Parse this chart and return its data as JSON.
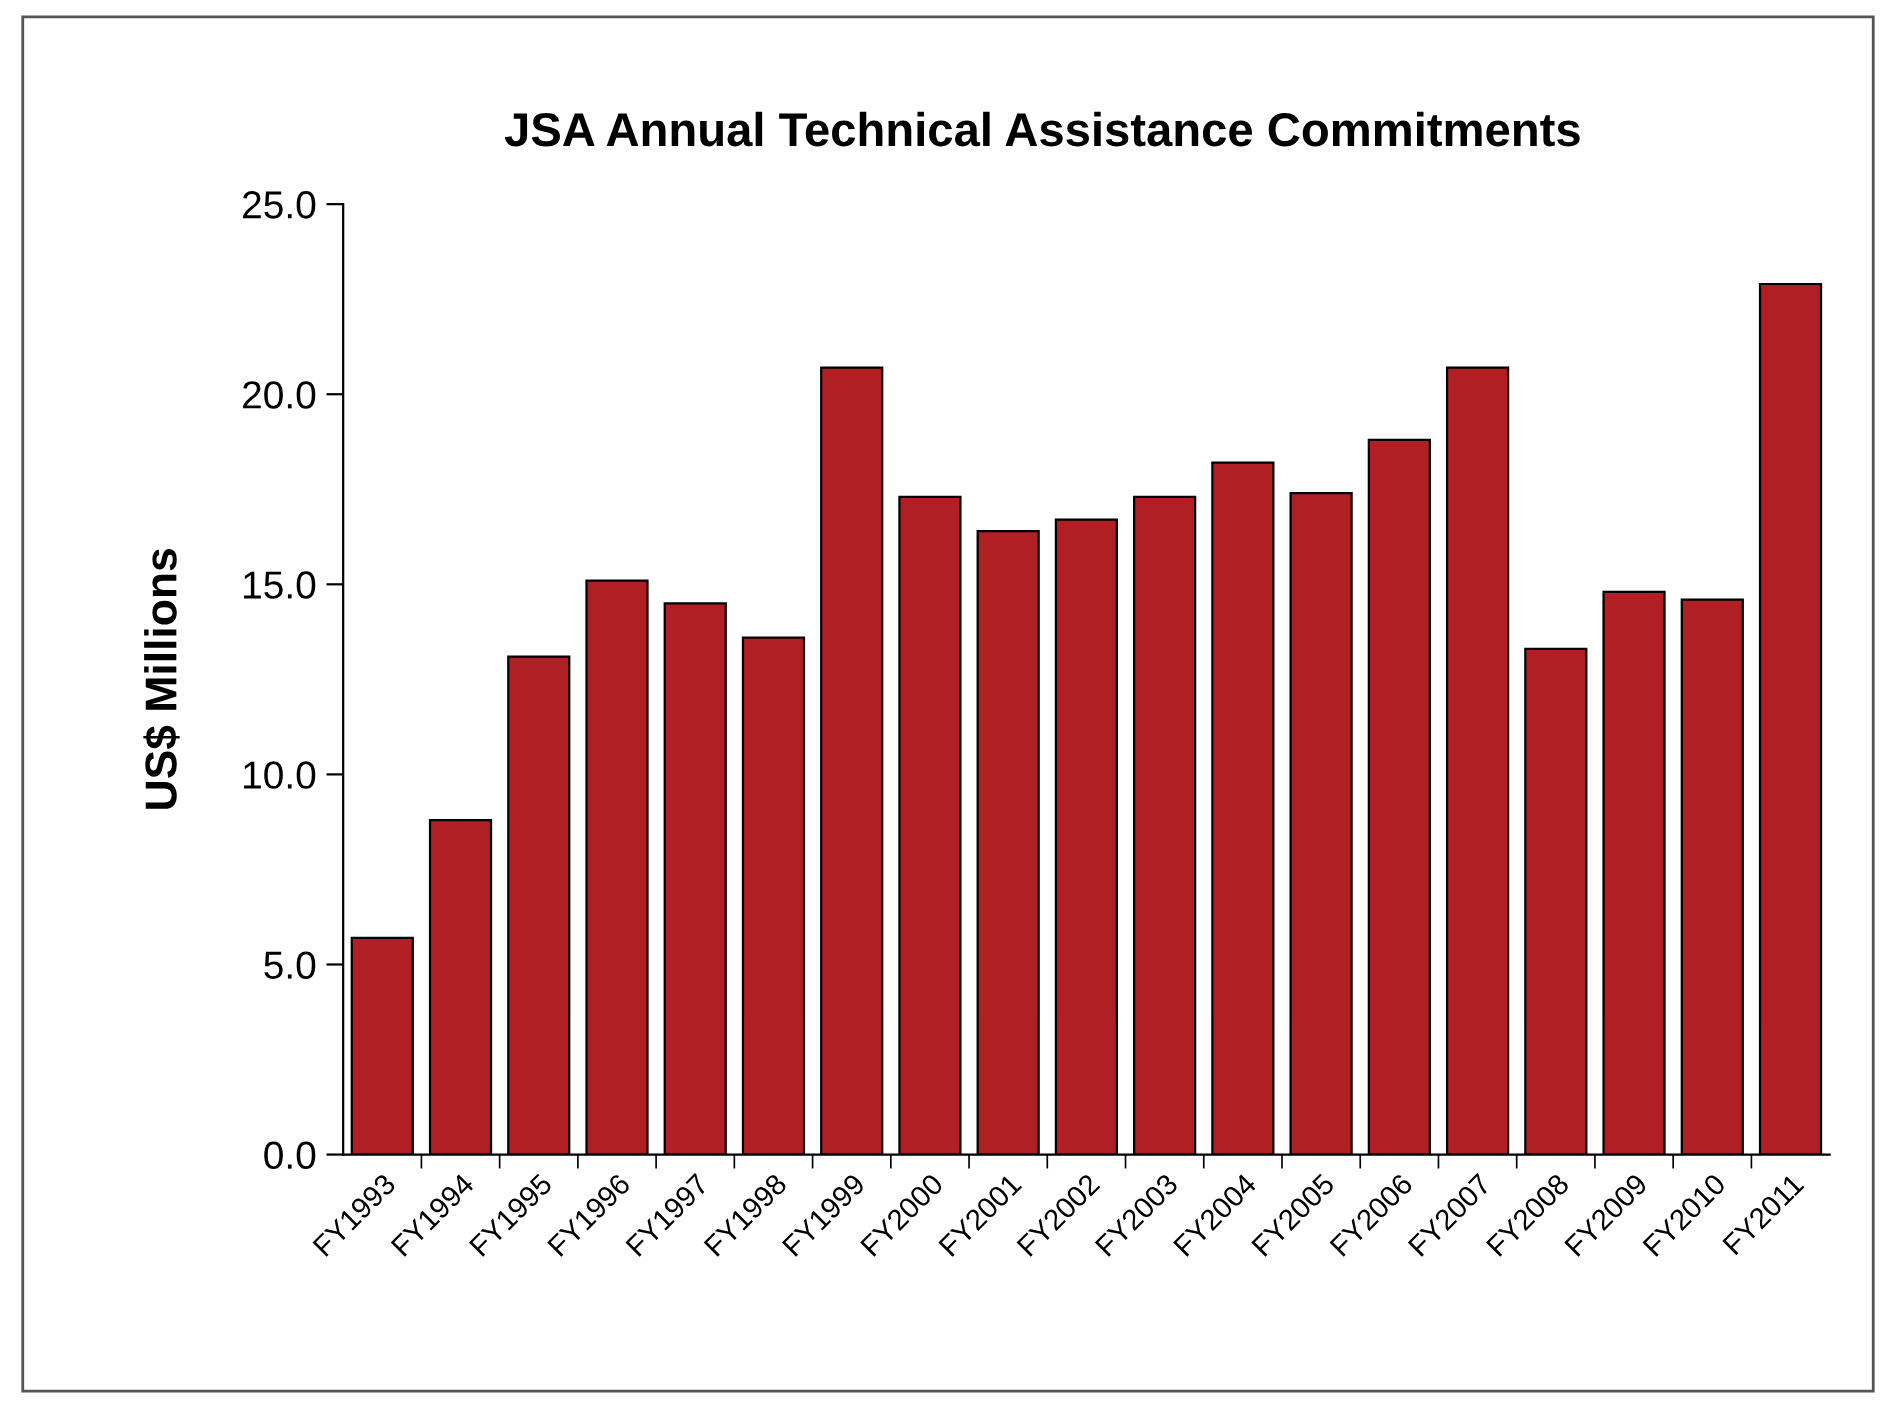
{
  "chart_data": {
    "type": "bar",
    "title": "JSA Annual Technical Assistance Commitments",
    "ylabel": "US$ Millions",
    "categories": [
      "FY1993",
      "FY1994",
      "FY1995",
      "FY1996",
      "FY1997",
      "FY1998",
      "FY1999",
      "FY2000",
      "FY2001",
      "FY2002",
      "FY2003",
      "FY2004",
      "FY2005",
      "FY2006",
      "FY2007",
      "FY2008",
      "FY2009",
      "FY2010",
      "FY2011"
    ],
    "values": [
      5.7,
      8.8,
      13.1,
      15.1,
      14.5,
      13.6,
      20.7,
      17.3,
      16.4,
      16.7,
      17.3,
      18.2,
      17.4,
      18.8,
      20.7,
      13.3,
      14.8,
      14.6,
      22.9
    ],
    "color": "#b01f24",
    "ylim": [
      0,
      25
    ],
    "yticks": [
      {
        "value": 0,
        "label": "0.0"
      },
      {
        "value": 5,
        "label": "5.0"
      },
      {
        "value": 10,
        "label": "10.0"
      },
      {
        "value": 15,
        "label": "15.0"
      },
      {
        "value": 20,
        "label": "20.0"
      },
      {
        "value": 25,
        "label": "25.0"
      }
    ],
    "grid": false,
    "legend": false
  }
}
